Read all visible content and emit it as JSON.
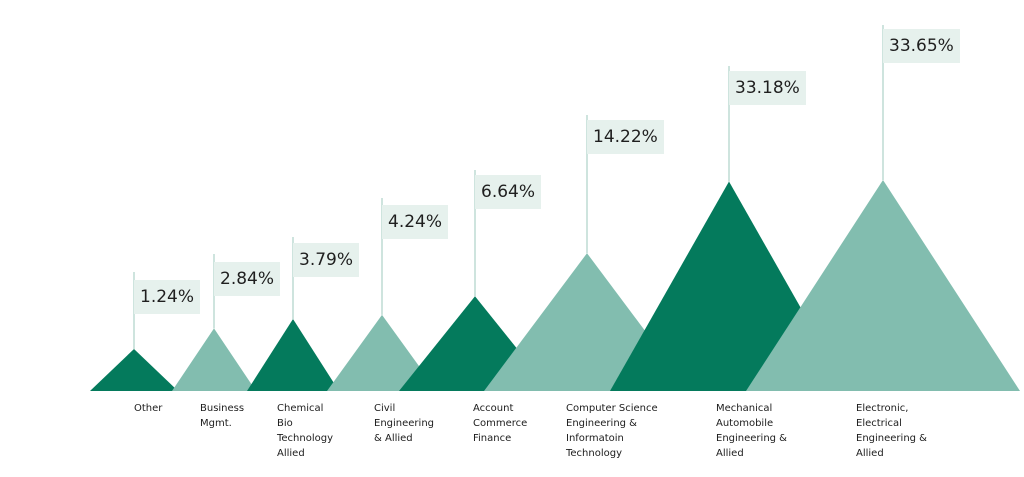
{
  "chart_data": {
    "type": "bar",
    "title": "",
    "xlabel": "",
    "ylabel": "",
    "categories": [
      "Other",
      "Business\nMgmt.",
      "Chemical\nBio\nTechnology\nAllied",
      "Civil\nEngineering\n& Allied",
      "Account\nCommerce\nFinance",
      "Computer Science\nEngineering  &\nInformatoin\nTechnology",
      "Mechanical\nAutomobile\nEngineering &\nAllied",
      "Electronic,\nElectrical\nEngineering &\nAllied"
    ],
    "values": [
      1.24,
      2.84,
      3.79,
      4.24,
      6.64,
      14.22,
      33.18,
      33.65
    ],
    "value_labels": [
      "1.24%",
      "2.84%",
      "3.79%",
      "4.24%",
      "6.64%",
      "14.22%",
      "33.18%",
      "33.65%"
    ],
    "grid": false,
    "legend": "none"
  },
  "colors": {
    "dark": "#047a5c",
    "light": "#82bdaf",
    "label_bg": "#e6f1ed",
    "stem": "#9cc9bd"
  }
}
